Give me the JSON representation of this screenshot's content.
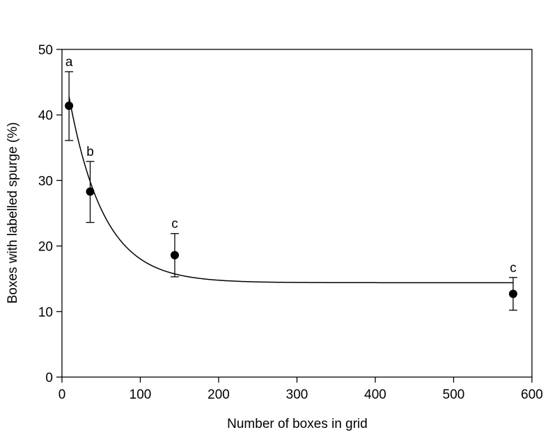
{
  "chart_data": {
    "type": "scatter",
    "title": "",
    "xlabel": "Number of boxes in grid",
    "ylabel": "Boxes with labelled spurge (%)",
    "xlim": [
      0,
      600
    ],
    "ylim": [
      0,
      50
    ],
    "xticks": [
      0,
      100,
      200,
      300,
      400,
      500,
      600
    ],
    "yticks": [
      0,
      10,
      20,
      30,
      40,
      50
    ],
    "grid": false,
    "legend": "none",
    "points": [
      {
        "x": 9,
        "y": 41.4,
        "err_low": 36.1,
        "err_high": 46.6,
        "label": "a"
      },
      {
        "x": 36,
        "y": 28.3,
        "err_low": 23.6,
        "err_high": 32.9,
        "label": "b"
      },
      {
        "x": 144,
        "y": 18.6,
        "err_low": 15.3,
        "err_high": 21.9,
        "label": "c"
      },
      {
        "x": 576,
        "y": 12.7,
        "err_low": 10.2,
        "err_high": 15.2,
        "label": "c"
      }
    ],
    "fit_curve": {
      "type": "exponential_decay",
      "y0": 14.4,
      "a": 34.8,
      "b": 0.0226,
      "x_range": [
        9,
        576
      ]
    },
    "colors": {
      "marker": "#000000",
      "line": "#000000"
    }
  }
}
